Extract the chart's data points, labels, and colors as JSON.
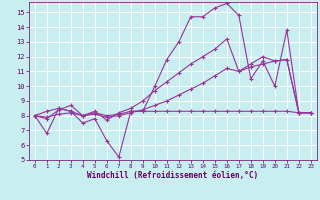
{
  "background_color": "#c8eef0",
  "grid_color": "#ffffff",
  "line_color": "#993399",
  "xlabel": "Windchill (Refroidissement éolien,°C)",
  "xlabel_color": "#660066",
  "tick_color": "#660066",
  "xlim": [
    -0.5,
    23.5
  ],
  "ylim": [
    5,
    15.7
  ],
  "yticks": [
    5,
    6,
    7,
    8,
    9,
    10,
    11,
    12,
    13,
    14,
    15
  ],
  "xticks": [
    0,
    1,
    2,
    3,
    4,
    5,
    6,
    7,
    8,
    9,
    10,
    11,
    12,
    13,
    14,
    15,
    16,
    17,
    18,
    19,
    20,
    21,
    22,
    23
  ],
  "series": [
    {
      "x": [
        0,
        1,
        2,
        3,
        4,
        5,
        6,
        7,
        8,
        9,
        10,
        11,
        12,
        13,
        14,
        15,
        16,
        17,
        18,
        19,
        20,
        21,
        22,
        23
      ],
      "y": [
        8.0,
        8.3,
        8.5,
        8.3,
        8.0,
        8.2,
        8.0,
        8.1,
        8.3,
        8.3,
        8.3,
        8.3,
        8.3,
        8.3,
        8.3,
        8.3,
        8.3,
        8.3,
        8.3,
        8.3,
        8.3,
        8.3,
        8.2,
        8.2
      ]
    },
    {
      "x": [
        0,
        1,
        2,
        3,
        4,
        5,
        6,
        7,
        8,
        9,
        10,
        11,
        12,
        13,
        14,
        15,
        16,
        17,
        18,
        19,
        20,
        21,
        22,
        23
      ],
      "y": [
        8.0,
        7.9,
        8.1,
        8.2,
        8.0,
        8.1,
        7.9,
        8.0,
        8.2,
        8.4,
        8.7,
        9.0,
        9.4,
        9.8,
        10.2,
        10.7,
        11.2,
        11.0,
        11.3,
        11.5,
        11.7,
        11.8,
        8.2,
        8.2
      ]
    },
    {
      "x": [
        0,
        1,
        2,
        3,
        4,
        5,
        6,
        7,
        8,
        9,
        10,
        11,
        12,
        13,
        14,
        15,
        16,
        17,
        18,
        19,
        20,
        21,
        22,
        23
      ],
      "y": [
        8.0,
        6.8,
        8.5,
        8.3,
        7.5,
        7.8,
        6.3,
        5.2,
        8.3,
        8.3,
        10.0,
        11.8,
        13.0,
        14.7,
        14.7,
        15.3,
        15.6,
        14.8,
        10.5,
        11.7,
        10.0,
        13.8,
        8.2,
        8.2
      ]
    },
    {
      "x": [
        0,
        1,
        2,
        3,
        4,
        5,
        6,
        7,
        8,
        9,
        10,
        11,
        12,
        13,
        14,
        15,
        16,
        17,
        18,
        19,
        20,
        21,
        22,
        23
      ],
      "y": [
        8.0,
        7.8,
        8.4,
        8.7,
        8.0,
        8.3,
        7.7,
        8.2,
        8.5,
        9.0,
        9.7,
        10.3,
        10.9,
        11.5,
        12.0,
        12.5,
        13.2,
        11.0,
        11.5,
        12.0,
        11.7,
        11.8,
        8.2,
        8.2
      ]
    }
  ]
}
